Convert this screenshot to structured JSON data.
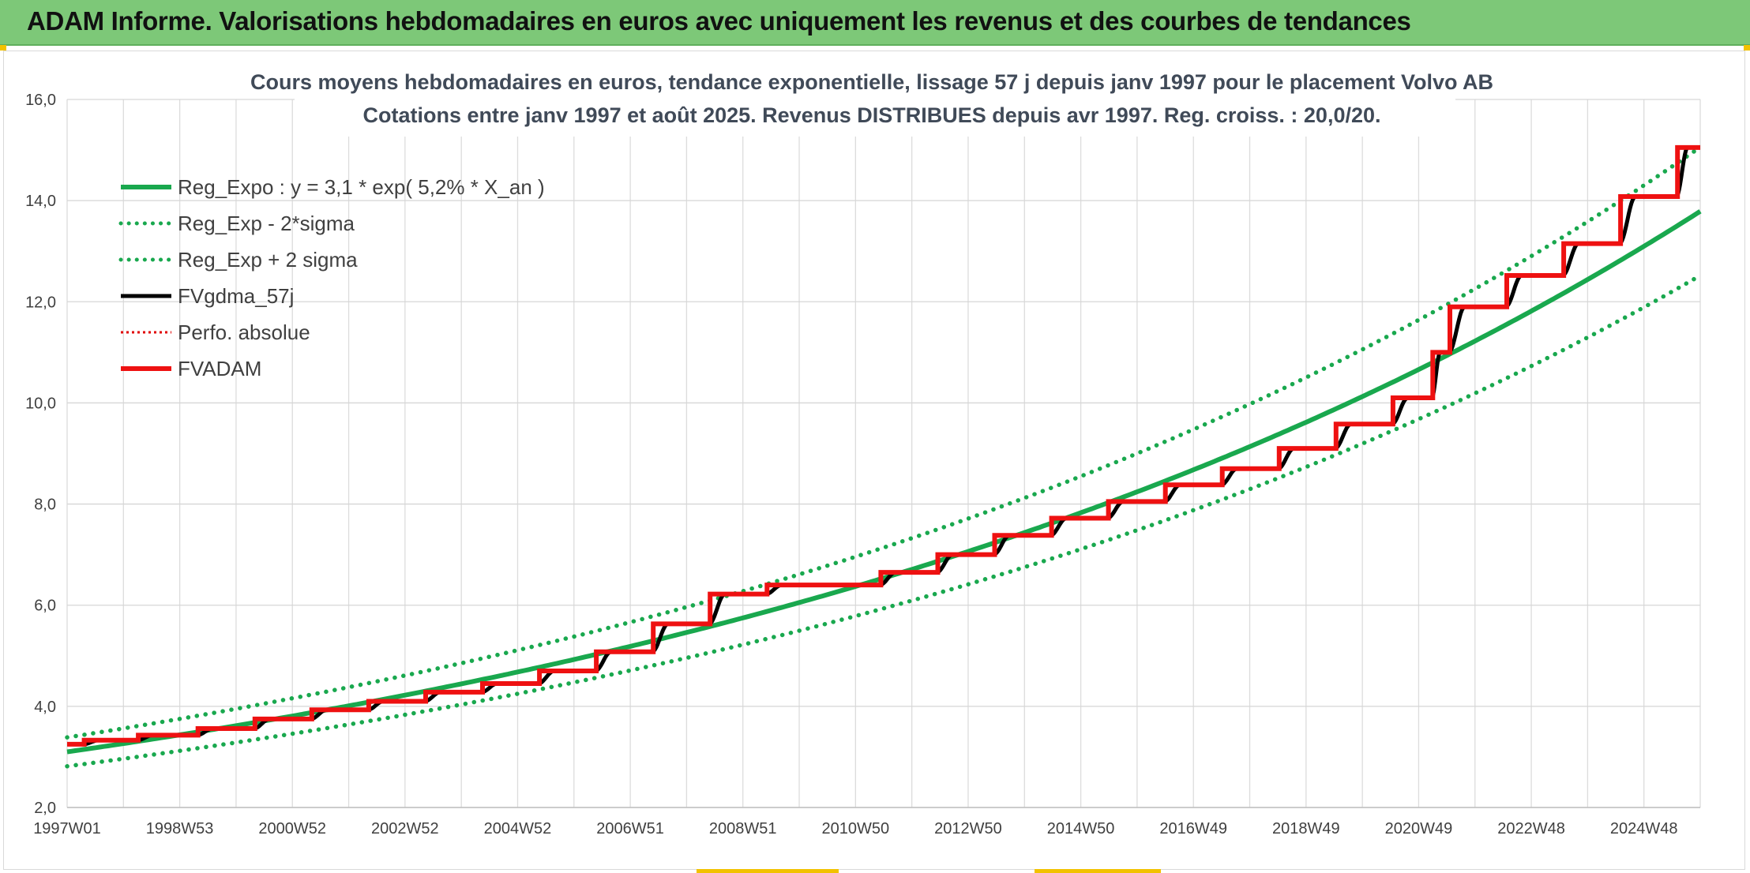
{
  "banner": {
    "title": "ADAM Informe. Valorisations hebdomadaires en euros avec uniquement les revenus et des courbes de tendances"
  },
  "colors": {
    "banner": "#7dc878",
    "trend": "#19a84e",
    "trend_band": "#19a84e",
    "smoothed": "#000000",
    "perf_absolue": "#e00000",
    "fvadam": "#ee1111"
  },
  "chart_data": {
    "type": "line",
    "title_lines": [
      "Cours moyens hebdomadaires en euros, tendance exponentielle, lissage 57 j depuis janv 1997 pour le placement Volvo AB",
      "Cotations entre janv 1997 et août 2025. Revenus DISTRIBUES depuis avr 1997. Reg. croiss. : 20,0/20."
    ],
    "xlabel": "",
    "ylabel": "",
    "x_tick_labels": [
      "1997W01",
      "1998W53",
      "2000W52",
      "2002W52",
      "2004W52",
      "2006W51",
      "2008W51",
      "2010W50",
      "2012W50",
      "2014W50",
      "2016W49",
      "2018W49",
      "2020W49",
      "2022W48",
      "2024W48"
    ],
    "x_range": [
      1997.0,
      2025.7
    ],
    "y_range": [
      2.0,
      16.0
    ],
    "y_ticks": [
      "2,0",
      "4,0",
      "6,0",
      "8,0",
      "10,0",
      "12,0",
      "14,0",
      "16,0"
    ],
    "y_tick_values": [
      2,
      4,
      6,
      8,
      10,
      12,
      14,
      16
    ],
    "grid": true,
    "legend_position": "top-left",
    "trend": {
      "a": 3.1,
      "growth": 0.052,
      "sigma_factor": 0.092
    },
    "legend": [
      {
        "name": "Reg_Expo : y = 3,1 * exp( 5,2% *  X_an )",
        "color": "#19a84e",
        "style": "solid",
        "width": 6
      },
      {
        "name": "Reg_Exp - 2*sigma",
        "color": "#19a84e",
        "style": "dotted",
        "width": 5
      },
      {
        "name": "Reg_Exp + 2 sigma",
        "color": "#19a84e",
        "style": "dotted",
        "width": 5
      },
      {
        "name": "FVgdma_57j",
        "color": "#000000",
        "style": "solid",
        "width": 5
      },
      {
        "name": "Perfo. absolue",
        "color": "#e00000",
        "style": "dotted",
        "width": 3
      },
      {
        "name": "FVADAM",
        "color": "#ee1111",
        "style": "solid",
        "width": 6
      }
    ],
    "fvadam_steps": [
      {
        "x": 1997.0,
        "y": 3.25
      },
      {
        "x": 1997.3,
        "y": 3.33
      },
      {
        "x": 1998.25,
        "y": 3.43
      },
      {
        "x": 1999.3,
        "y": 3.56
      },
      {
        "x": 2000.3,
        "y": 3.75
      },
      {
        "x": 2001.3,
        "y": 3.93
      },
      {
        "x": 2002.3,
        "y": 4.1
      },
      {
        "x": 2003.3,
        "y": 4.28
      },
      {
        "x": 2004.3,
        "y": 4.45
      },
      {
        "x": 2005.3,
        "y": 4.7
      },
      {
        "x": 2006.3,
        "y": 5.08
      },
      {
        "x": 2007.3,
        "y": 5.63
      },
      {
        "x": 2008.3,
        "y": 6.22
      },
      {
        "x": 2009.3,
        "y": 6.4
      },
      {
        "x": 2011.3,
        "y": 6.65
      },
      {
        "x": 2012.3,
        "y": 7.0
      },
      {
        "x": 2013.3,
        "y": 7.38
      },
      {
        "x": 2014.3,
        "y": 7.72
      },
      {
        "x": 2015.3,
        "y": 8.05
      },
      {
        "x": 2016.3,
        "y": 8.38
      },
      {
        "x": 2017.3,
        "y": 8.7
      },
      {
        "x": 2018.3,
        "y": 9.1
      },
      {
        "x": 2019.3,
        "y": 9.58
      },
      {
        "x": 2020.3,
        "y": 10.1
      },
      {
        "x": 2021.0,
        "y": 11.0
      },
      {
        "x": 2021.3,
        "y": 11.9
      },
      {
        "x": 2022.3,
        "y": 12.52
      },
      {
        "x": 2023.3,
        "y": 13.15
      },
      {
        "x": 2024.3,
        "y": 14.08
      },
      {
        "x": 2025.3,
        "y": 15.05
      }
    ],
    "x_end": 2025.7
  }
}
